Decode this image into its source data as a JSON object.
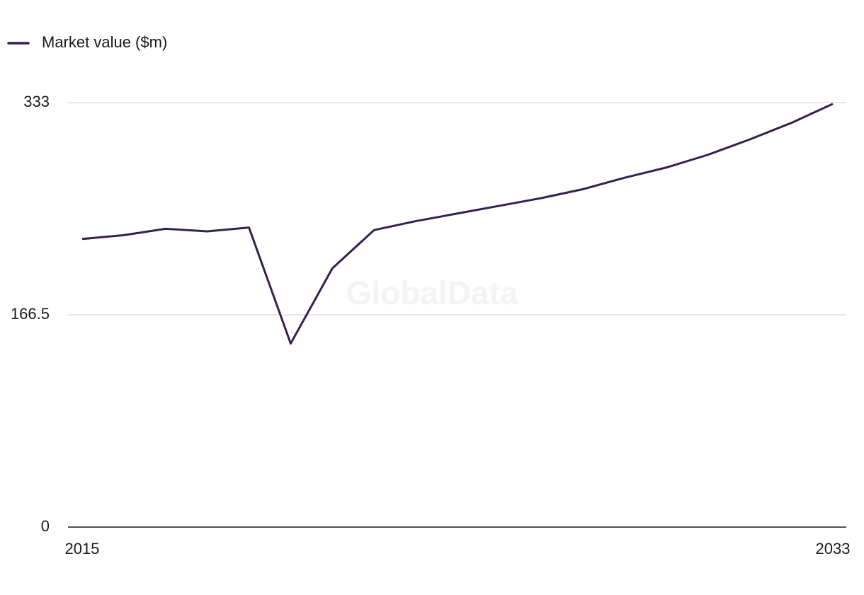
{
  "chart_data": {
    "type": "line",
    "watermark": "GlobalData",
    "x": [
      2015,
      2016,
      2017,
      2018,
      2019,
      2020,
      2021,
      2022,
      2023,
      2024,
      2025,
      2026,
      2027,
      2028,
      2029,
      2030,
      2031,
      2032,
      2033
    ],
    "series": [
      {
        "name": "Market value ($m)",
        "color": "#35204f",
        "values": [
          226,
          229,
          234,
          232,
          235,
          144,
          203,
          233,
          240,
          246,
          252,
          258,
          265,
          274,
          282,
          292,
          304,
          317,
          332
        ]
      }
    ],
    "xlim": [
      2015,
      2033
    ],
    "xticks": [
      2015,
      2033
    ],
    "ylim": [
      0,
      333
    ],
    "yticks": [
      0,
      166.5,
      333
    ],
    "grid": true,
    "legend": "top-left"
  }
}
